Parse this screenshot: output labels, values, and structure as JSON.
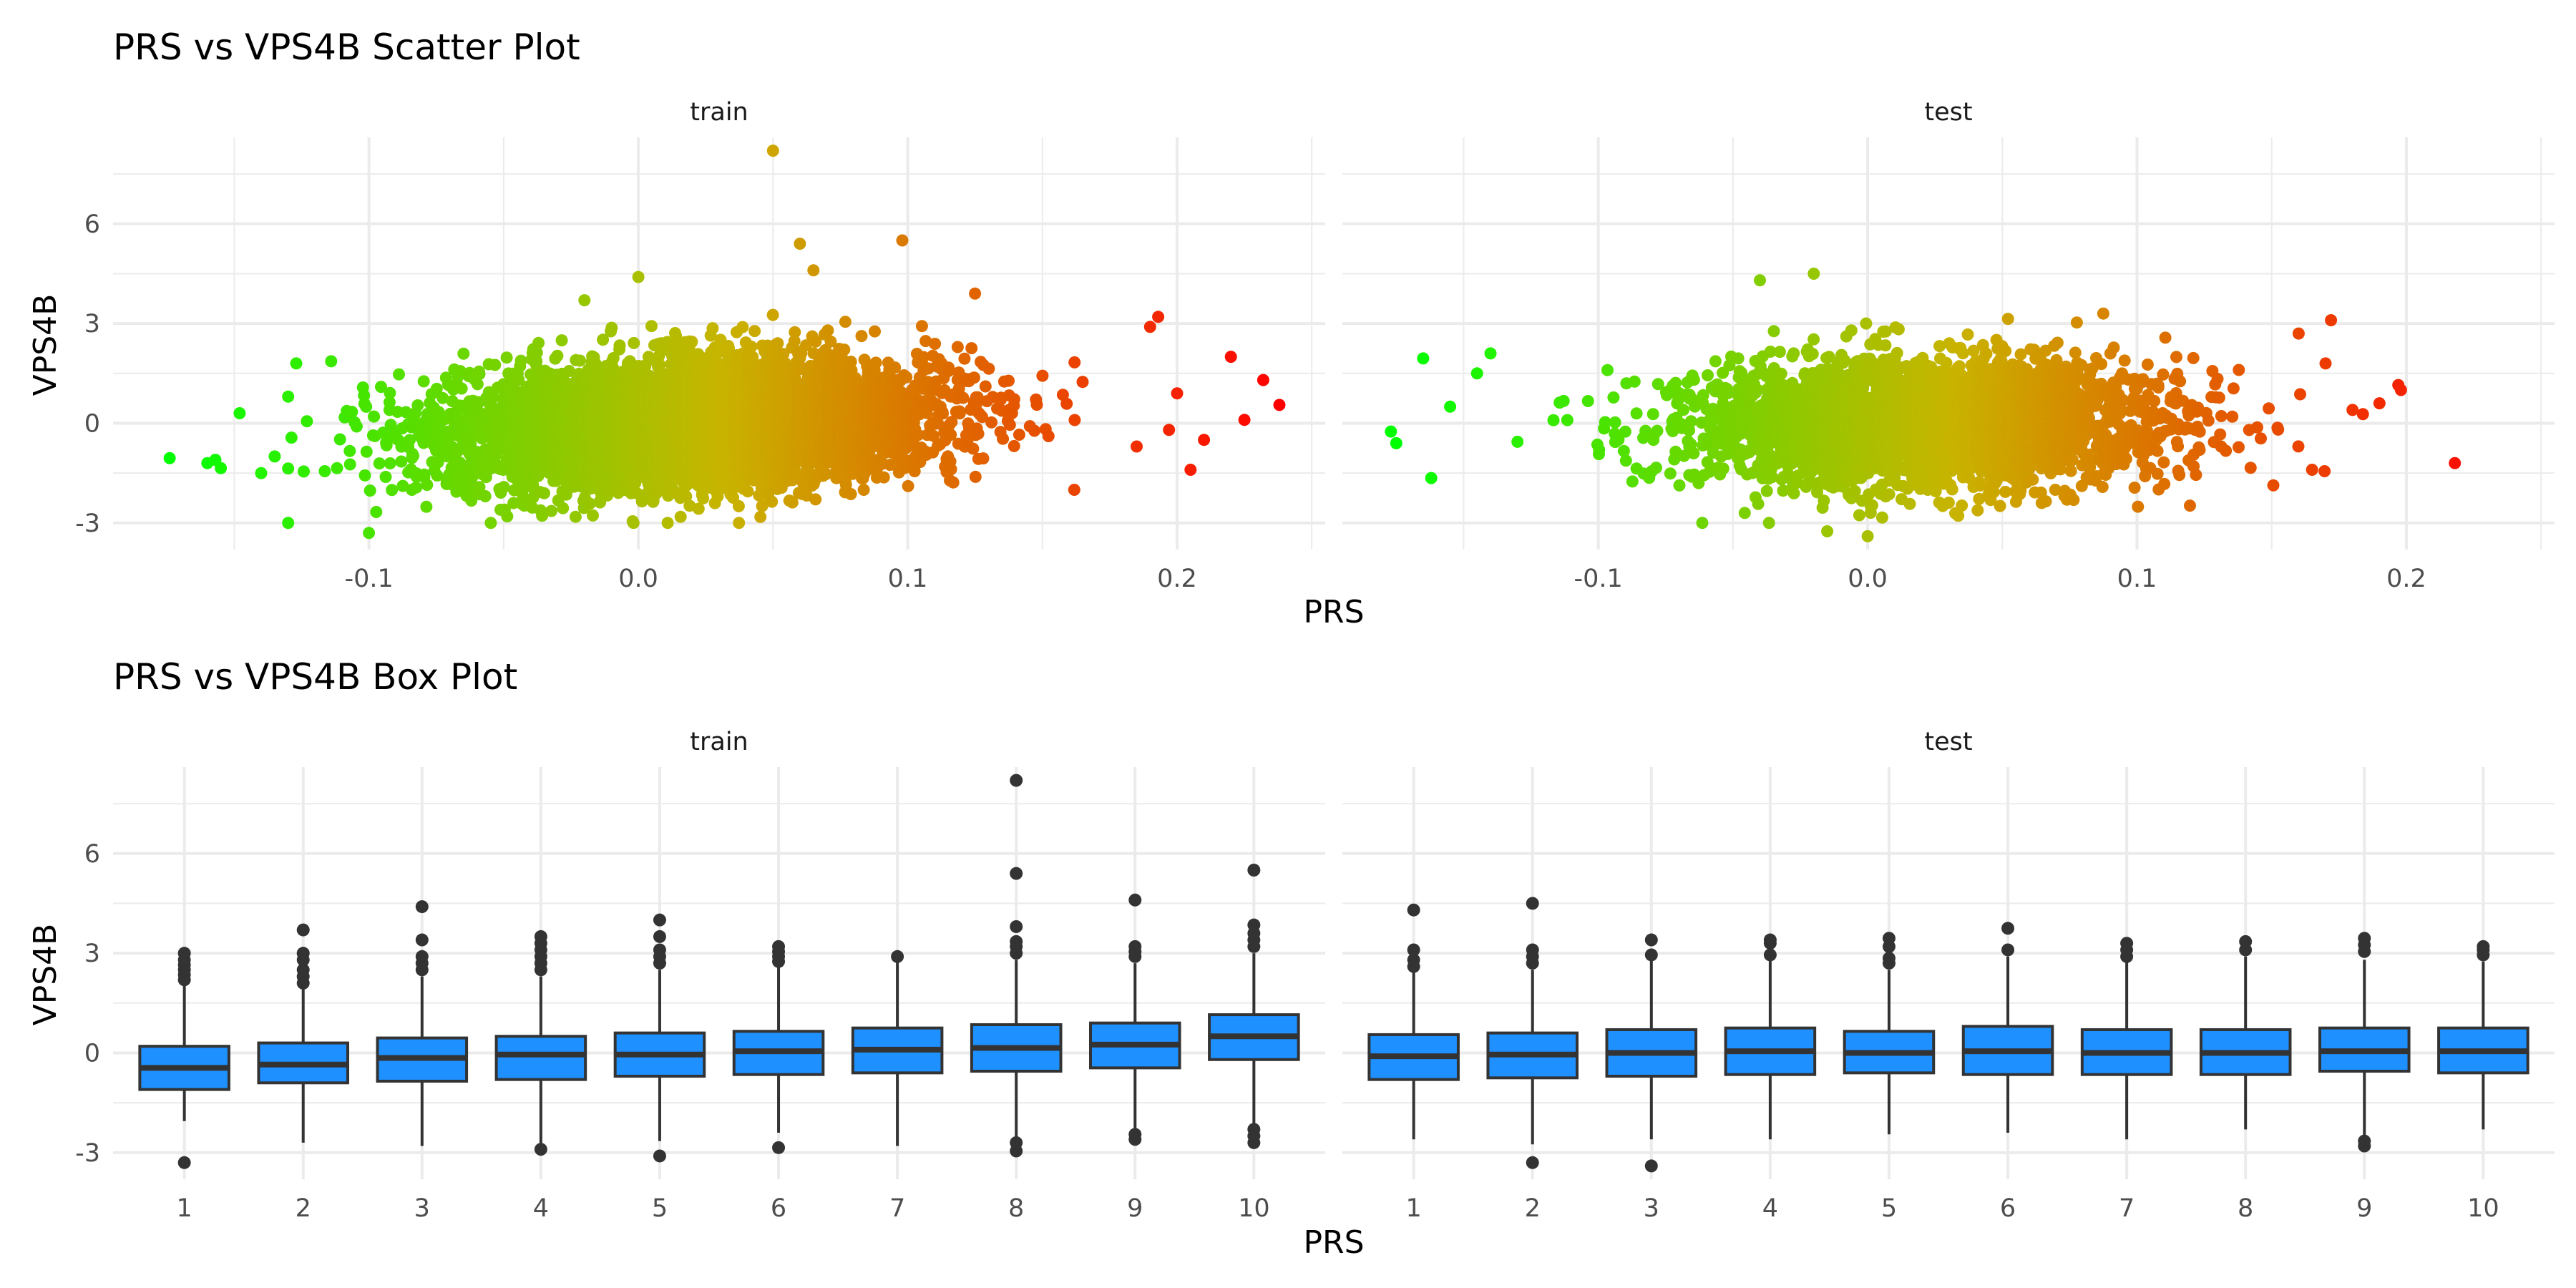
{
  "colors": {
    "low": "#00ff00",
    "mid": "#c8b400",
    "high": "#ff0000",
    "box_fill": "#1e90ff",
    "box_line": "#333333",
    "grid": "#ebebeb"
  },
  "chart_data": [
    {
      "type": "scatter",
      "title": "PRS vs VPS4B Scatter Plot",
      "xlabel": "PRS",
      "ylabel": "VPS4B",
      "color_by": "PRS",
      "xlim": [
        -0.195,
        0.255
      ],
      "ylim": [
        -3.8,
        8.6
      ],
      "xticks": [
        -0.1,
        0.0,
        0.1,
        0.2
      ],
      "xtick_labels": [
        "-0.1",
        "0.0",
        "0.1",
        "0.2"
      ],
      "yticks": [
        -3,
        0,
        3,
        6
      ],
      "ytick_labels": [
        "-3",
        "0",
        "3",
        "6"
      ],
      "grid": true,
      "panels": [
        {
          "label": "train",
          "bulk": {
            "x_center": 0.02,
            "x_sd": 0.045,
            "y_slope": 3.5,
            "y_sd": 0.95,
            "n": 5200
          },
          "points": [
            {
              "x": -0.174,
              "y": -1.05
            },
            {
              "x": -0.16,
              "y": -1.2
            },
            {
              "x": -0.157,
              "y": -1.1
            },
            {
              "x": -0.155,
              "y": -1.35
            },
            {
              "x": -0.148,
              "y": 0.3
            },
            {
              "x": -0.14,
              "y": -1.5
            },
            {
              "x": -0.135,
              "y": -1.0
            },
            {
              "x": -0.13,
              "y": 0.8
            },
            {
              "x": -0.127,
              "y": 1.8
            },
            {
              "x": -0.1,
              "y": -3.3
            },
            {
              "x": 0.05,
              "y": 8.2
            },
            {
              "x": 0.06,
              "y": 5.4
            },
            {
              "x": 0.065,
              "y": 4.6
            },
            {
              "x": 0.098,
              "y": 5.5
            },
            {
              "x": 0.0,
              "y": 4.4
            },
            {
              "x": -0.02,
              "y": 3.7
            },
            {
              "x": 0.125,
              "y": 3.9
            },
            {
              "x": 0.193,
              "y": 3.2
            },
            {
              "x": 0.19,
              "y": 2.9
            },
            {
              "x": 0.22,
              "y": 2.0
            },
            {
              "x": 0.232,
              "y": 1.3
            },
            {
              "x": 0.238,
              "y": 0.55
            },
            {
              "x": 0.225,
              "y": 0.1
            },
            {
              "x": 0.21,
              "y": -0.5
            },
            {
              "x": 0.205,
              "y": -1.4
            },
            {
              "x": 0.2,
              "y": 0.9
            },
            {
              "x": 0.197,
              "y": -0.2
            }
          ]
        },
        {
          "label": "test",
          "bulk": {
            "x_center": 0.02,
            "x_sd": 0.045,
            "y_slope": 1.5,
            "y_sd": 0.95,
            "n": 3000
          },
          "points": [
            {
              "x": -0.177,
              "y": -0.25
            },
            {
              "x": -0.175,
              "y": -0.6
            },
            {
              "x": -0.165,
              "y": 1.95
            },
            {
              "x": -0.162,
              "y": -1.65
            },
            {
              "x": -0.155,
              "y": 0.5
            },
            {
              "x": -0.14,
              "y": 2.1
            },
            {
              "x": -0.145,
              "y": 1.5
            },
            {
              "x": -0.02,
              "y": 4.5
            },
            {
              "x": -0.04,
              "y": 4.3
            },
            {
              "x": 0.0,
              "y": -3.4
            },
            {
              "x": -0.015,
              "y": -3.25
            },
            {
              "x": 0.218,
              "y": -1.2
            },
            {
              "x": 0.198,
              "y": 1.0
            },
            {
              "x": 0.197,
              "y": 1.15
            },
            {
              "x": 0.19,
              "y": 0.6
            },
            {
              "x": 0.172,
              "y": 3.1
            },
            {
              "x": 0.17,
              "y": 1.8
            },
            {
              "x": 0.165,
              "y": -1.4
            },
            {
              "x": 0.18,
              "y": 0.4
            },
            {
              "x": 0.16,
              "y": 2.7
            }
          ]
        }
      ]
    },
    {
      "type": "box",
      "title": "PRS vs VPS4B Box Plot",
      "xlabel": "PRS",
      "ylabel": "VPS4B",
      "categories": [
        "1",
        "2",
        "3",
        "4",
        "5",
        "6",
        "7",
        "8",
        "9",
        "10"
      ],
      "ylim": [
        -3.8,
        8.6
      ],
      "yticks": [
        -3,
        0,
        3,
        6
      ],
      "ytick_labels": [
        "-3",
        "0",
        "3",
        "6"
      ],
      "grid": true,
      "panels": [
        {
          "label": "train",
          "boxes": [
            {
              "q1": -1.1,
              "median": -0.45,
              "q3": 0.2,
              "lower": -2.05,
              "upper": 2.05,
              "outliers": [
                -3.3,
                2.2,
                2.35,
                2.5,
                2.65,
                2.8,
                3.0
              ]
            },
            {
              "q1": -0.9,
              "median": -0.35,
              "q3": 0.3,
              "lower": -2.7,
              "upper": 2.0,
              "outliers": [
                2.1,
                2.3,
                2.5,
                2.8,
                3.0,
                3.7
              ]
            },
            {
              "q1": -0.85,
              "median": -0.15,
              "q3": 0.45,
              "lower": -2.8,
              "upper": 2.3,
              "outliers": [
                2.5,
                2.7,
                2.9,
                3.4,
                4.4
              ]
            },
            {
              "q1": -0.8,
              "median": -0.05,
              "q3": 0.5,
              "lower": -2.75,
              "upper": 2.3,
              "outliers": [
                -2.9,
                2.5,
                2.7,
                2.9,
                3.1,
                3.3,
                3.5
              ]
            },
            {
              "q1": -0.7,
              "median": -0.05,
              "q3": 0.6,
              "lower": -2.65,
              "upper": 2.5,
              "outliers": [
                -3.1,
                2.7,
                2.9,
                3.1,
                3.5,
                4.0
              ]
            },
            {
              "q1": -0.65,
              "median": 0.05,
              "q3": 0.65,
              "lower": -2.4,
              "upper": 2.6,
              "outliers": [
                -2.85,
                2.75,
                2.9,
                3.05,
                3.2
              ]
            },
            {
              "q1": -0.6,
              "median": 0.1,
              "q3": 0.75,
              "lower": -2.8,
              "upper": 2.8,
              "outliers": [
                2.9
              ]
            },
            {
              "q1": -0.55,
              "median": 0.15,
              "q3": 0.85,
              "lower": -2.55,
              "upper": 2.8,
              "outliers": [
                -2.95,
                -2.7,
                3.0,
                3.2,
                3.35,
                3.8,
                5.4,
                8.2
              ]
            },
            {
              "q1": -0.45,
              "median": 0.25,
              "q3": 0.9,
              "lower": -2.4,
              "upper": 2.7,
              "outliers": [
                -2.6,
                -2.45,
                2.9,
                3.05,
                3.2,
                4.6
              ]
            },
            {
              "q1": -0.2,
              "median": 0.5,
              "q3": 1.15,
              "lower": -2.15,
              "upper": 3.0,
              "outliers": [
                -2.7,
                -2.5,
                -2.3,
                3.2,
                3.4,
                3.6,
                3.85,
                5.5
              ]
            }
          ]
        },
        {
          "label": "test",
          "boxes": [
            {
              "q1": -0.8,
              "median": -0.1,
              "q3": 0.55,
              "lower": -2.6,
              "upper": 2.45,
              "outliers": [
                2.6,
                2.8,
                3.1,
                4.3
              ]
            },
            {
              "q1": -0.75,
              "median": -0.05,
              "q3": 0.6,
              "lower": -2.75,
              "upper": 2.5,
              "outliers": [
                -3.3,
                2.7,
                2.9,
                3.1,
                4.5
              ]
            },
            {
              "q1": -0.7,
              "median": 0.0,
              "q3": 0.7,
              "lower": -2.6,
              "upper": 2.8,
              "outliers": [
                -3.4,
                2.95,
                3.4
              ]
            },
            {
              "q1": -0.65,
              "median": 0.05,
              "q3": 0.75,
              "lower": -2.6,
              "upper": 2.8,
              "outliers": [
                2.95,
                3.3,
                3.4
              ]
            },
            {
              "q1": -0.6,
              "median": 0.0,
              "q3": 0.65,
              "lower": -2.45,
              "upper": 2.5,
              "outliers": [
                2.7,
                2.85,
                3.2,
                3.45
              ]
            },
            {
              "q1": -0.65,
              "median": 0.05,
              "q3": 0.8,
              "lower": -2.4,
              "upper": 2.9,
              "outliers": [
                3.1,
                3.75
              ]
            },
            {
              "q1": -0.65,
              "median": 0.0,
              "q3": 0.7,
              "lower": -2.6,
              "upper": 2.75,
              "outliers": [
                2.9,
                3.1,
                3.3
              ]
            },
            {
              "q1": -0.65,
              "median": 0.0,
              "q3": 0.7,
              "lower": -2.3,
              "upper": 2.9,
              "outliers": [
                3.1,
                3.35
              ]
            },
            {
              "q1": -0.55,
              "median": 0.05,
              "q3": 0.75,
              "lower": -2.5,
              "upper": 2.8,
              "outliers": [
                -2.8,
                -2.65,
                3.05,
                3.25,
                3.45
              ]
            },
            {
              "q1": -0.6,
              "median": 0.05,
              "q3": 0.75,
              "lower": -2.3,
              "upper": 2.75,
              "outliers": [
                2.95,
                3.1,
                3.2
              ]
            }
          ]
        }
      ]
    }
  ]
}
